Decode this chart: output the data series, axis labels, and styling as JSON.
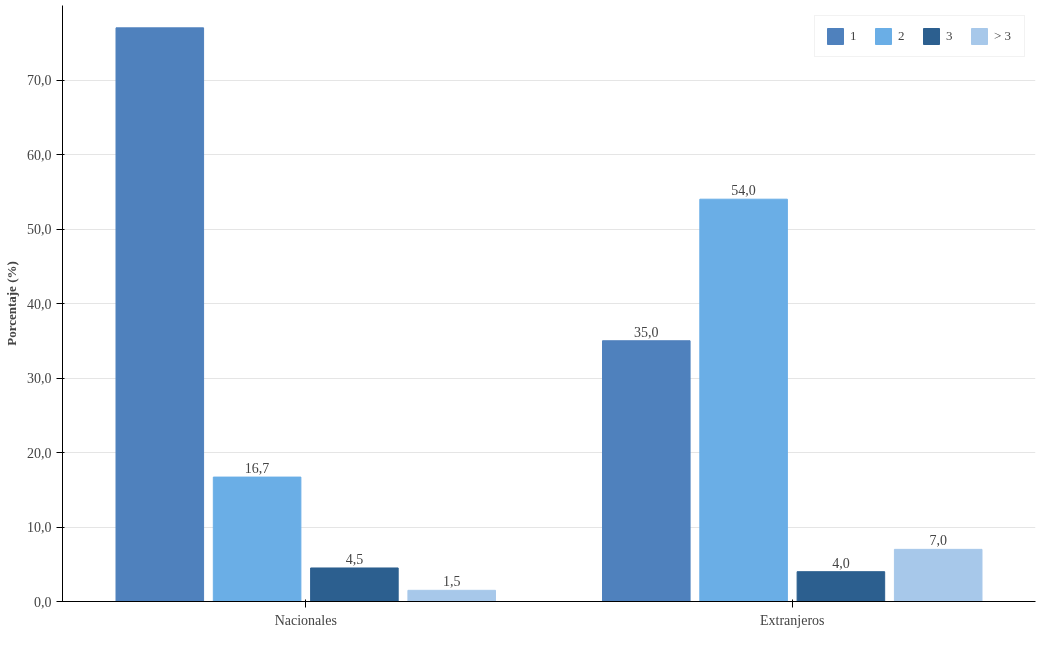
{
  "chart_data": {
    "type": "bar",
    "ylabel": "Porcentaje (%)",
    "categories": [
      "Nacionales",
      "Extranjeros"
    ],
    "series": [
      {
        "name": "1",
        "color": "#4f81bd",
        "values": [
          77,
          35.0
        ],
        "value_labels": [
          null,
          "35,0"
        ]
      },
      {
        "name": "2",
        "color": "#6aaee6",
        "values": [
          16.7,
          54.0
        ],
        "value_labels": [
          "16,7",
          "54,0"
        ]
      },
      {
        "name": "3",
        "color": "#2c5f8f",
        "values": [
          4.5,
          4.0
        ],
        "value_labels": [
          "4,5",
          "4,0"
        ]
      },
      {
        "name": "> 3",
        "color": "#a7c8ea",
        "values": [
          1.5,
          7.0
        ],
        "value_labels": [
          "1,5",
          "7,0"
        ]
      }
    ],
    "ylim": [
      0,
      80
    ],
    "yticks": [
      {
        "value": 0,
        "label": "0,0"
      },
      {
        "value": 10,
        "label": "10,0"
      },
      {
        "value": 20,
        "label": "20,0"
      },
      {
        "value": 30,
        "label": "30,0"
      },
      {
        "value": 40,
        "label": "40,0"
      },
      {
        "value": 50,
        "label": "50,0"
      },
      {
        "value": 60,
        "label": "60,0"
      },
      {
        "value": 70,
        "label": "70,0"
      }
    ],
    "grid": "y",
    "legend": "top right"
  }
}
